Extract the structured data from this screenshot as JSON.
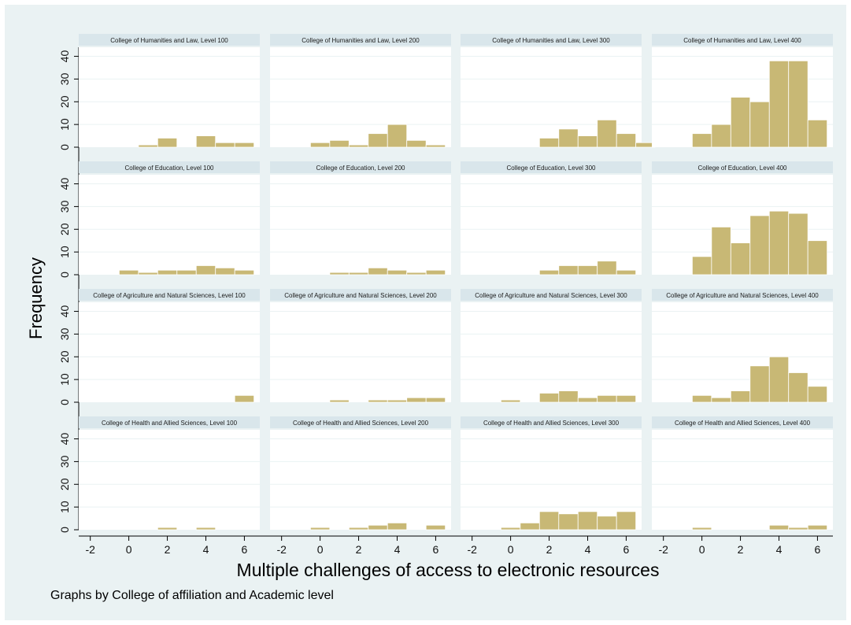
{
  "chart_data": {
    "type": "bar",
    "subtype": "faceted-histogram",
    "xlabel": "Multiple challenges of access to electronic resources",
    "ylabel": "Frequency",
    "note": "Graphs by College of affiliation and Academic level",
    "xlim": [
      -2.6,
      6.8
    ],
    "ylim": [
      0,
      44
    ],
    "x_ticks": [
      -2,
      0,
      2,
      4,
      6
    ],
    "y_ticks": [
      0,
      10,
      20,
      30,
      40
    ],
    "bin_edges": [
      -0.5,
      0.5,
      1.5,
      2.5,
      3.5,
      4.5,
      5.5,
      6.5
    ],
    "grid": true,
    "bar_color": "#c8b875",
    "panel_background": "#ffffff",
    "outer_background": "#eaf2f3",
    "strip_color": "#d9e6eb",
    "panels": [
      {
        "title": "College of Humanities and Law, Level 100",
        "values": [
          0,
          1,
          4,
          0,
          5,
          2,
          2
        ]
      },
      {
        "title": "College of Humanities and Law, Level 200",
        "values": [
          2,
          3,
          1,
          6,
          10,
          3,
          1
        ]
      },
      {
        "title": "College of Humanities and Law, Level 300",
        "values": [
          0,
          0,
          4,
          8,
          5,
          12,
          6,
          2
        ],
        "bin_edges": [
          -0.5,
          0.5,
          1.5,
          2.5,
          3.5,
          4.5,
          5.5,
          6.5,
          7.5
        ]
      },
      {
        "title": "College of Humanities and Law, Level 400",
        "values": [
          6,
          10,
          22,
          20,
          38,
          38,
          12
        ]
      },
      {
        "title": "College of Education, Level 100",
        "values": [
          2,
          1,
          2,
          2,
          4,
          3,
          2
        ]
      },
      {
        "title": "College of Education, Level 200",
        "values": [
          0,
          1,
          1,
          3,
          2,
          1,
          2
        ]
      },
      {
        "title": "College of Education, Level 300",
        "values": [
          0,
          0,
          2,
          4,
          4,
          6,
          2
        ]
      },
      {
        "title": "College of Education, Level 400",
        "values": [
          8,
          21,
          14,
          26,
          28,
          27,
          15
        ]
      },
      {
        "title": "College of Agriculture and  Natural Sciences, Level 100",
        "values": [
          0,
          0,
          0,
          0,
          0,
          0,
          3
        ]
      },
      {
        "title": "College of Agriculture and  Natural Sciences, Level 200",
        "values": [
          0,
          1,
          0,
          1,
          1,
          2,
          2
        ]
      },
      {
        "title": "College of Agriculture and  Natural Sciences, Level 300",
        "values": [
          1,
          0,
          4,
          5,
          2,
          3,
          3
        ]
      },
      {
        "title": "College of Agriculture and  Natural Sciences, Level 400",
        "values": [
          3,
          2,
          5,
          16,
          20,
          13,
          7
        ]
      },
      {
        "title": "College of Health and Allied Sciences, Level 100",
        "values": [
          0,
          0,
          1,
          0,
          1,
          0,
          0
        ]
      },
      {
        "title": "College of Health and Allied Sciences, Level 200",
        "values": [
          1,
          0,
          1,
          2,
          3,
          0,
          2
        ]
      },
      {
        "title": "College of Health and Allied Sciences, Level 300",
        "values": [
          1,
          3,
          8,
          7,
          8,
          6,
          8
        ]
      },
      {
        "title": "College of Health and Allied Sciences, Level 400",
        "values": [
          1,
          0,
          0,
          0,
          2,
          1,
          2
        ]
      }
    ]
  }
}
